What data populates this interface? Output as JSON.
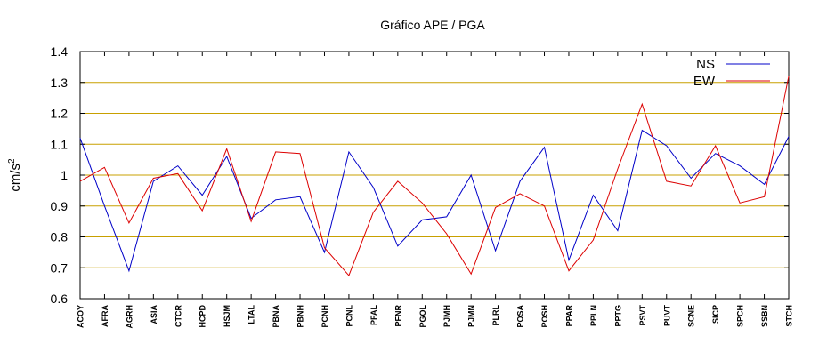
{
  "chart_data": {
    "type": "line",
    "title": "Gráfico  APE / PGA",
    "xlabel": "",
    "ylabel": "cm/s",
    "ylabel_superscript": "2",
    "ylim": [
      0.6,
      1.4
    ],
    "yticks": [
      "0.6",
      "0.7",
      "0.8",
      "0.9",
      "1",
      "1.1",
      "1.2",
      "1.3",
      "1.4"
    ],
    "grid": "horizontal",
    "grid_color": "#c8a000",
    "legend_position": "top-right",
    "categories": [
      "ACOY",
      "AFRA",
      "AGRH",
      "ASIA",
      "CTCR",
      "HCPD",
      "HSJM",
      "LTAL",
      "PBNA",
      "PBNH",
      "PCNH",
      "PCNL",
      "PFAL",
      "PFNR",
      "PGOL",
      "PJMH",
      "PJMN",
      "PLRL",
      "POSA",
      "POSH",
      "PPAR",
      "PPLN",
      "PPTG",
      "PSVT",
      "PUVT",
      "SCNE",
      "SICP",
      "SPCH",
      "SSBN",
      "STCH"
    ],
    "series": [
      {
        "name": "NS",
        "color": "#0000c8",
        "values": [
          1.12,
          0.9,
          0.69,
          0.98,
          1.03,
          0.935,
          1.06,
          0.86,
          0.92,
          0.93,
          0.75,
          1.075,
          0.96,
          0.77,
          0.855,
          0.865,
          1.0,
          0.755,
          0.98,
          1.09,
          0.725,
          0.935,
          0.82,
          1.145,
          1.095,
          0.99,
          1.07,
          1.03,
          0.97,
          1.125
        ]
      },
      {
        "name": "EW",
        "color": "#dc0000",
        "values": [
          0.98,
          1.025,
          0.845,
          0.99,
          1.005,
          0.885,
          1.085,
          0.85,
          1.075,
          1.07,
          0.765,
          0.675,
          0.88,
          0.98,
          0.91,
          0.81,
          0.68,
          0.895,
          0.94,
          0.9,
          0.69,
          0.79,
          1.02,
          1.23,
          0.98,
          0.965,
          1.095,
          0.91,
          0.93,
          1.32
        ]
      }
    ]
  }
}
